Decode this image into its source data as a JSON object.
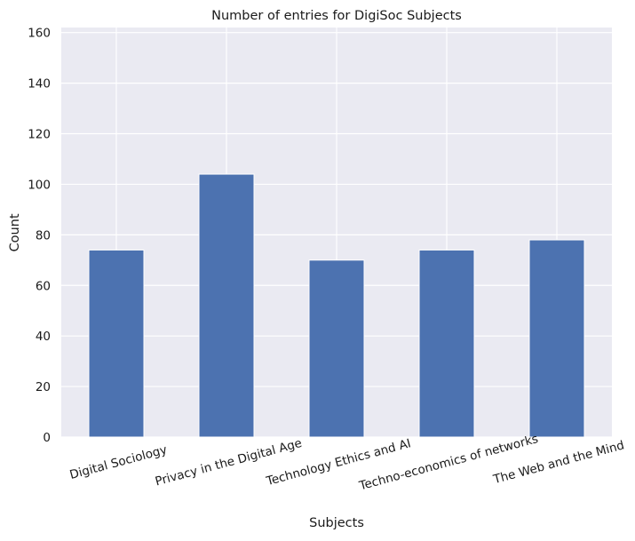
{
  "chart_data": {
    "type": "bar",
    "title": "Number of entries for DigiSoc Subjects",
    "xlabel": "Subjects",
    "ylabel": "Count",
    "categories": [
      "Digital Sociology",
      "Privacy in the Digital Age",
      "Technology Ethics and AI",
      "Techno-economics of networks",
      "The Web and the Mind"
    ],
    "values": [
      74,
      104,
      70,
      74,
      78
    ],
    "ylim": [
      0,
      162
    ],
    "yticks": [
      0,
      20,
      40,
      60,
      80,
      100,
      120,
      140,
      160
    ],
    "grid": true,
    "colors": {
      "bar": "#4c72b0",
      "plot_background": "#eaeaf2",
      "grid": "#ffffff"
    }
  }
}
